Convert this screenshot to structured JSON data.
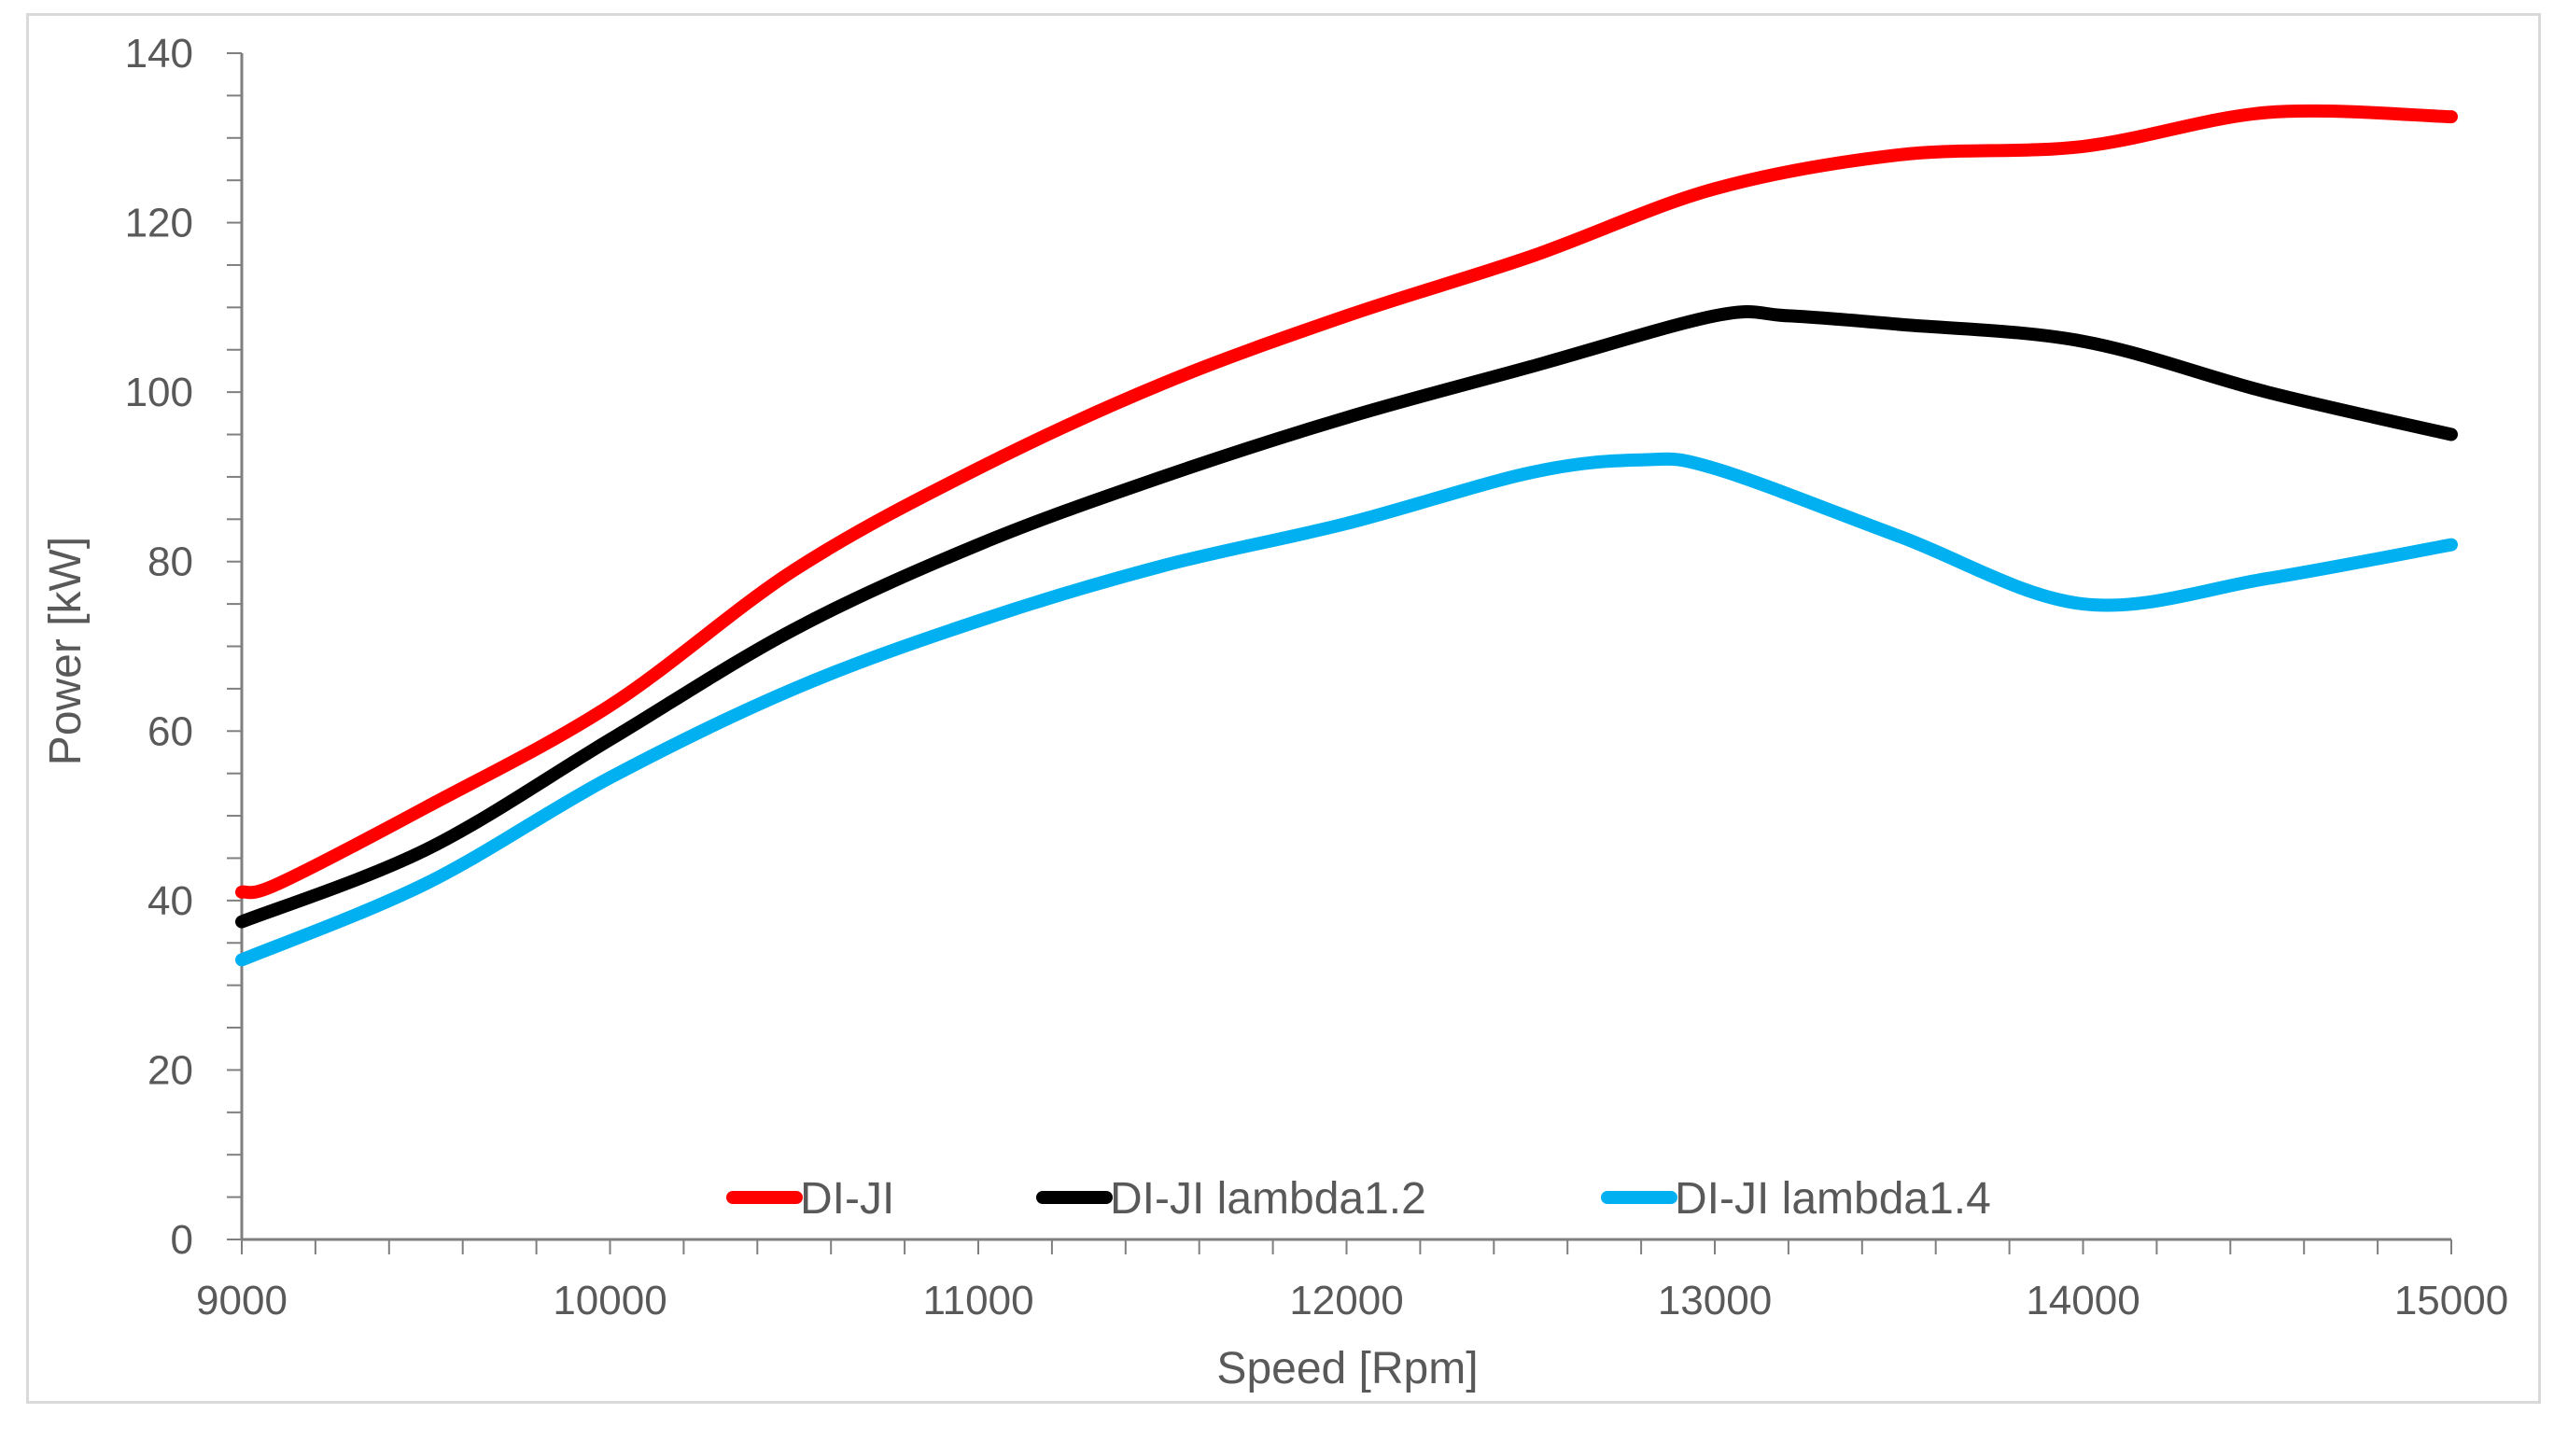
{
  "chart_data": {
    "type": "line",
    "title": "",
    "xlabel": "Speed [Rpm]",
    "ylabel": "Power [kW]",
    "xlim": [
      9000,
      15000
    ],
    "ylim": [
      0,
      140
    ],
    "x_ticks": [
      9000,
      10000,
      11000,
      12000,
      13000,
      14000,
      15000
    ],
    "y_ticks": [
      0,
      20,
      40,
      60,
      80,
      100,
      120,
      140
    ],
    "x_minor_step": 200,
    "y_minor_step": 5,
    "grid": false,
    "legend_position": "bottom-center-inside",
    "series": [
      {
        "name": "DI-JI",
        "color": "#ff0000",
        "x": [
          9000,
          9100,
          9500,
          10000,
          10500,
          11000,
          11500,
          12000,
          12500,
          13000,
          13500,
          14000,
          14500,
          15000
        ],
        "y": [
          41,
          42,
          51,
          63,
          79,
          91,
          101,
          109,
          116,
          124,
          128,
          129,
          133,
          132.5
        ]
      },
      {
        "name": "DI-JI lambda1.2",
        "color": "#000000",
        "x": [
          9000,
          9500,
          10000,
          10500,
          11000,
          11500,
          12000,
          12500,
          13000,
          13200,
          13500,
          14000,
          14500,
          15000
        ],
        "y": [
          37.5,
          46,
          59,
          72,
          82,
          90,
          97,
          103,
          109,
          109,
          108,
          106,
          100,
          95
        ]
      },
      {
        "name": "DI-JI lambda1.4",
        "color": "#00b0f0",
        "x": [
          9000,
          9500,
          10000,
          10500,
          11000,
          11500,
          12000,
          12500,
          12800,
          13000,
          13500,
          14000,
          14500,
          15000
        ],
        "y": [
          33,
          42,
          54.5,
          65,
          73,
          79.5,
          84.5,
          90.5,
          92,
          91,
          83,
          75,
          78,
          82
        ]
      }
    ]
  }
}
